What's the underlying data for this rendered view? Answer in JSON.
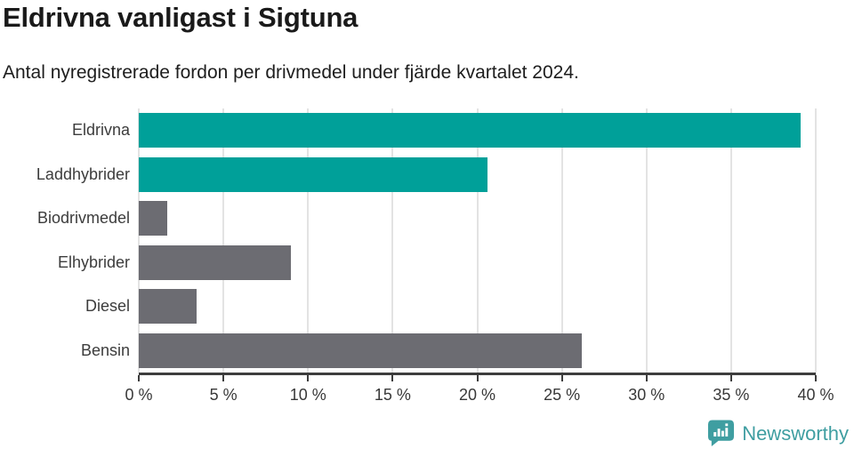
{
  "header": {
    "title": "Eldrivna vanligast i Sigtuna",
    "subtitle": "Antal nyregistrerade fordon per drivmedel under fjärde kvartalet 2024."
  },
  "chart_data": {
    "type": "bar",
    "orientation": "horizontal",
    "title": "Eldrivna vanligast i Sigtuna",
    "subtitle": "Antal nyregistrerade fordon per drivmedel under fjärde kvartalet 2024.",
    "categories": [
      "Eldrivna",
      "Laddhybrider",
      "Biodrivmedel",
      "Elhybrider",
      "Diesel",
      "Bensin"
    ],
    "values": [
      39.1,
      20.6,
      1.7,
      9.0,
      3.4,
      26.2
    ],
    "unit": "%",
    "xlim": [
      0,
      40
    ],
    "tick_step": 5,
    "tick_labels": [
      "0 %",
      "5 %",
      "10 %",
      "15 %",
      "20 %",
      "25 %",
      "30 %",
      "35 %",
      "40 %"
    ],
    "grid": true,
    "bar_colors": [
      "#00a099",
      "#00a099",
      "#6c6c72",
      "#6c6c72",
      "#6c6c72",
      "#6c6c72"
    ],
    "highlight_color": "#00a099",
    "neutral_color": "#6c6c72",
    "axis_color": "#3d3d3d",
    "grid_color": "#e3e3e3"
  },
  "footer": {
    "brand": "Newsworthy",
    "brand_color": "#3f9ea1",
    "logo_icon": "newsworthy-speech-bubble-chart-icon"
  }
}
